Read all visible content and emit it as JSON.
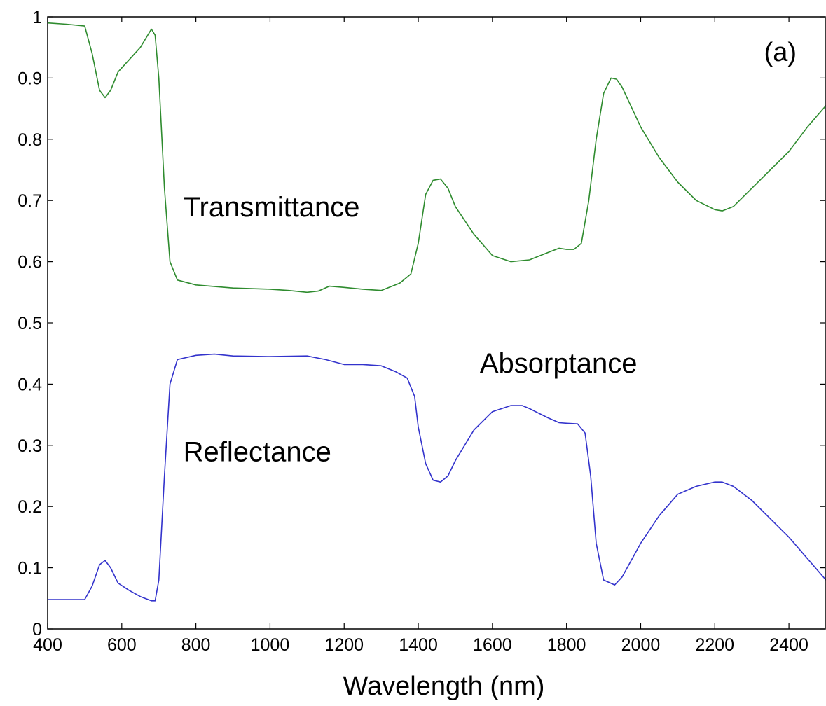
{
  "chart_data": {
    "type": "line",
    "panel_label": "(a)",
    "title": "",
    "xlabel": "Wavelength (nm)",
    "ylabel": "",
    "xlim": [
      400,
      2500
    ],
    "ylim": [
      0,
      1
    ],
    "grid": false,
    "xticks": [
      "400",
      "600",
      "800",
      "1000",
      "1200",
      "1400",
      "1600",
      "1800",
      "2000",
      "2200",
      "2400"
    ],
    "yticks": [
      "0",
      "0.1",
      "0.2",
      "0.3",
      "0.4",
      "0.5",
      "0.6",
      "0.7",
      "0.8",
      "0.9",
      "1"
    ],
    "annotations": [
      {
        "text": "Transmittance",
        "x": 800,
        "y": 0.69
      },
      {
        "text": "Absorptance",
        "x": 1600,
        "y": 0.435
      },
      {
        "text": "Reflectance",
        "x": 800,
        "y": 0.29
      }
    ],
    "series": [
      {
        "color": "#2e8b2e",
        "x": [
          400,
          450,
          500,
          520,
          540,
          555,
          570,
          590,
          620,
          650,
          680,
          690,
          700,
          715,
          730,
          750,
          800,
          900,
          1000,
          1050,
          1100,
          1130,
          1160,
          1200,
          1250,
          1300,
          1350,
          1380,
          1400,
          1420,
          1440,
          1460,
          1480,
          1500,
          1550,
          1600,
          1650,
          1700,
          1750,
          1780,
          1800,
          1820,
          1840,
          1860,
          1880,
          1900,
          1920,
          1935,
          1950,
          2000,
          2050,
          2100,
          2150,
          2200,
          2220,
          2250,
          2300,
          2350,
          2400,
          2450,
          2500
        ],
        "values": [
          0.99,
          0.988,
          0.985,
          0.94,
          0.88,
          0.868,
          0.88,
          0.91,
          0.93,
          0.95,
          0.98,
          0.97,
          0.9,
          0.72,
          0.6,
          0.57,
          0.562,
          0.557,
          0.555,
          0.553,
          0.55,
          0.552,
          0.56,
          0.558,
          0.555,
          0.553,
          0.565,
          0.58,
          0.63,
          0.71,
          0.733,
          0.735,
          0.72,
          0.69,
          0.645,
          0.61,
          0.6,
          0.603,
          0.615,
          0.622,
          0.62,
          0.62,
          0.63,
          0.7,
          0.8,
          0.875,
          0.9,
          0.898,
          0.885,
          0.82,
          0.77,
          0.73,
          0.7,
          0.685,
          0.683,
          0.69,
          0.72,
          0.75,
          0.78,
          0.82,
          0.855
        ]
      },
      {
        "color": "#3333cc",
        "x": [
          400,
          450,
          500,
          520,
          540,
          555,
          570,
          590,
          620,
          650,
          680,
          690,
          700,
          715,
          730,
          750,
          800,
          850,
          900,
          1000,
          1100,
          1150,
          1200,
          1250,
          1300,
          1340,
          1370,
          1390,
          1400,
          1420,
          1440,
          1460,
          1480,
          1500,
          1550,
          1600,
          1650,
          1680,
          1700,
          1750,
          1780,
          1800,
          1830,
          1850,
          1865,
          1880,
          1900,
          1930,
          1950,
          2000,
          2050,
          2100,
          2150,
          2200,
          2220,
          2250,
          2300,
          2350,
          2400,
          2450,
          2500
        ],
        "values": [
          0.048,
          0.048,
          0.048,
          0.07,
          0.105,
          0.112,
          0.1,
          0.075,
          0.063,
          0.053,
          0.046,
          0.046,
          0.08,
          0.25,
          0.4,
          0.44,
          0.447,
          0.449,
          0.446,
          0.445,
          0.446,
          0.44,
          0.432,
          0.432,
          0.43,
          0.42,
          0.41,
          0.38,
          0.33,
          0.27,
          0.243,
          0.24,
          0.25,
          0.275,
          0.325,
          0.355,
          0.365,
          0.365,
          0.36,
          0.345,
          0.337,
          0.336,
          0.335,
          0.32,
          0.25,
          0.14,
          0.08,
          0.072,
          0.085,
          0.14,
          0.185,
          0.22,
          0.233,
          0.24,
          0.24,
          0.233,
          0.21,
          0.18,
          0.15,
          0.115,
          0.08
        ]
      }
    ]
  }
}
